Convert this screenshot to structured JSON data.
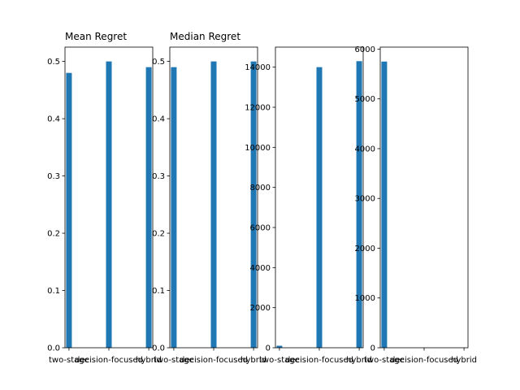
{
  "chart_data": [
    {
      "type": "bar",
      "title": "Mean Regret",
      "categories": [
        "two-stage",
        "decision-focused",
        "hybrid"
      ],
      "values": [
        0.48,
        0.5,
        0.49
      ],
      "ylim": [
        0,
        0.525
      ],
      "yticks": [
        0.0,
        0.1,
        0.2,
        0.3,
        0.4,
        0.5
      ],
      "ytick_labels": [
        "0.0",
        "0.1",
        "0.2",
        "0.3",
        "0.4",
        "0.5"
      ],
      "bar_color": "#1f77b4",
      "grid": false
    },
    {
      "type": "bar",
      "title": "Median Regret",
      "categories": [
        "two-stage",
        "decision-focused",
        "hybrid"
      ],
      "values": [
        0.49,
        0.5,
        0.5
      ],
      "ylim": [
        0,
        0.525
      ],
      "yticks": [
        0.0,
        0.1,
        0.2,
        0.3,
        0.4,
        0.5
      ],
      "ytick_labels": [
        "0.0",
        "0.1",
        "0.2",
        "0.3",
        "0.4",
        "0.5"
      ],
      "bar_color": "#1f77b4",
      "grid": false
    },
    {
      "type": "bar",
      "title": "",
      "categories": [
        "two-stage",
        "decision-focused",
        "hybrid"
      ],
      "values": [
        100,
        14000,
        14300
      ],
      "ylim": [
        0,
        15000
      ],
      "yticks": [
        0,
        2000,
        4000,
        6000,
        8000,
        10000,
        12000,
        14000
      ],
      "ytick_labels": [
        "0",
        "2000",
        "4000",
        "6000",
        "8000",
        "10000",
        "12000",
        "14000"
      ],
      "bar_color": "#1f77b4",
      "grid": false
    },
    {
      "type": "bar",
      "title": "",
      "categories": [
        "two-stage",
        "decision-focused",
        "hybrid"
      ],
      "values": [
        5750,
        0,
        0
      ],
      "ylim": [
        0,
        6040
      ],
      "yticks": [
        0,
        1000,
        2000,
        3000,
        4000,
        5000,
        6000
      ],
      "ytick_labels": [
        "0",
        "1000",
        "2000",
        "3000",
        "4000",
        "5000",
        "6000"
      ],
      "bar_color": "#1f77b4",
      "grid": false
    }
  ]
}
